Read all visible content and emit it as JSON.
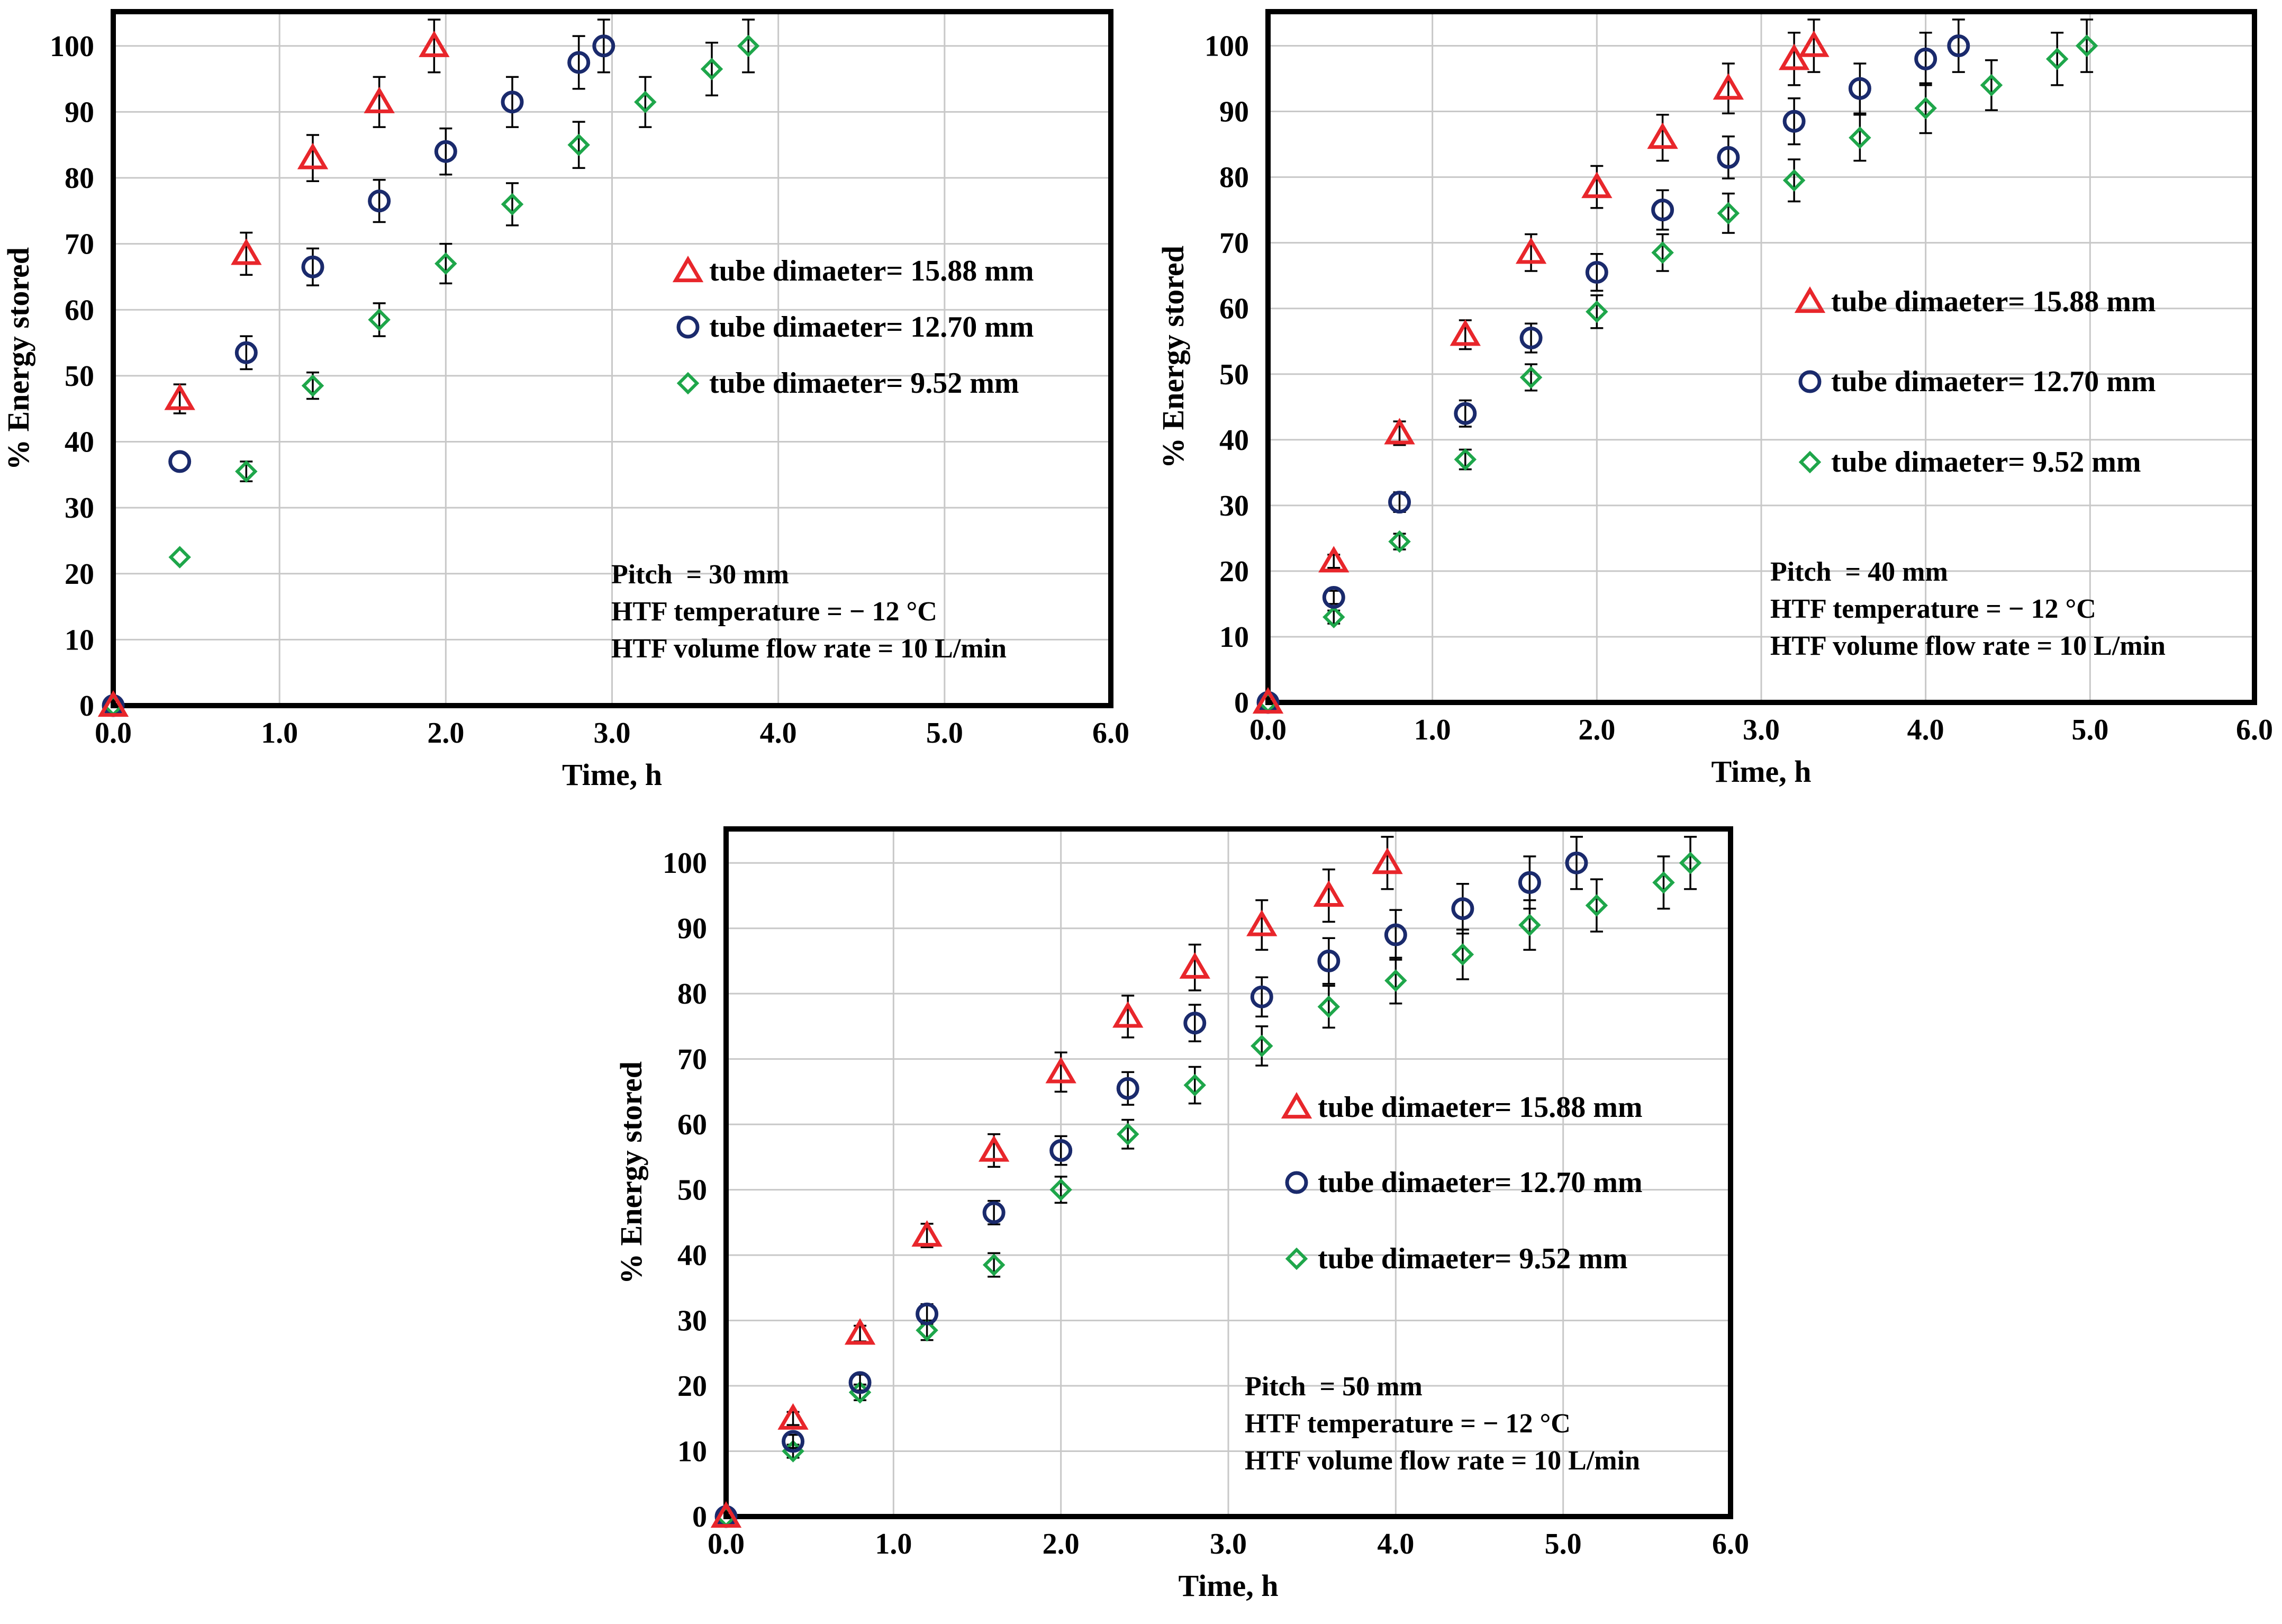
{
  "colors": {
    "d1588": "#e8262b",
    "d1270": "#1a2a6c",
    "d952": "#1ea64a",
    "grid": "#c8c8c8"
  },
  "chart_data": [
    {
      "type": "scatter",
      "title": "",
      "xlabel": "Time, h",
      "ylabel": "% Energy stored",
      "xlim": [
        0,
        6
      ],
      "ylim": [
        0,
        105
      ],
      "xticks": [
        "0.0",
        "1.0",
        "2.0",
        "3.0",
        "4.0",
        "5.0",
        "6.0"
      ],
      "yticks": [
        "0",
        "10",
        "20",
        "30",
        "40",
        "50",
        "60",
        "70",
        "80",
        "90",
        "100"
      ],
      "legend_position": "right",
      "legend": [
        "tube dimaeter= 15.88 mm",
        "tube dimaeter= 12.70 mm",
        "tube dimaeter= 9.52 mm"
      ],
      "notes": [
        "Pitch  = 30 mm",
        "HTF temperature = − 12 °C",
        "HTF volume flow rate = 10 L/min"
      ],
      "series": [
        {
          "name": "tube dimaeter= 15.88 mm",
          "marker": "triangle",
          "color_key": "d1588",
          "x": [
            0,
            0.4,
            0.8,
            1.2,
            1.6,
            1.93
          ],
          "y": [
            0,
            46.5,
            68.5,
            83,
            91.5,
            100
          ],
          "err": [
            0,
            2.2,
            3.2,
            3.5,
            3.8,
            4
          ]
        },
        {
          "name": "tube dimaeter= 12.70 mm",
          "marker": "circle",
          "color_key": "d1270",
          "x": [
            0,
            0.4,
            0.8,
            1.2,
            1.6,
            2.0,
            2.4,
            2.8,
            2.95
          ],
          "y": [
            0,
            37,
            53.5,
            66.5,
            76.5,
            84,
            91.5,
            97.5,
            100
          ],
          "err": [
            0,
            0,
            2.5,
            2.8,
            3.2,
            3.5,
            3.8,
            4,
            4
          ]
        },
        {
          "name": "tube dimaeter= 9.52 mm",
          "marker": "diamond",
          "color_key": "d952",
          "x": [
            0,
            0.4,
            0.8,
            1.2,
            1.6,
            2.0,
            2.4,
            2.8,
            3.2,
            3.6,
            3.82
          ],
          "y": [
            0,
            22.5,
            35.5,
            48.5,
            58.5,
            67,
            76,
            85,
            91.5,
            96.5,
            100
          ],
          "err": [
            0,
            0,
            1.5,
            2,
            2.5,
            3,
            3.2,
            3.5,
            3.8,
            4,
            4
          ]
        }
      ]
    },
    {
      "type": "scatter",
      "title": "",
      "xlabel": "Time, h",
      "ylabel": "% Energy stored",
      "xlim": [
        0,
        6
      ],
      "ylim": [
        0,
        105
      ],
      "xticks": [
        "0.0",
        "1.0",
        "2.0",
        "3.0",
        "4.0",
        "5.0",
        "6.0"
      ],
      "yticks": [
        "0",
        "10",
        "20",
        "30",
        "40",
        "50",
        "60",
        "70",
        "80",
        "90",
        "100"
      ],
      "legend_position": "right",
      "legend": [
        "tube dimaeter= 15.88 mm",
        "tube dimaeter= 12.70 mm",
        "tube dimaeter= 9.52 mm"
      ],
      "notes": [
        "Pitch  = 40 mm",
        "HTF temperature = − 12 °C",
        "HTF volume flow rate = 10 L/min"
      ],
      "series": [
        {
          "name": "tube dimaeter= 15.88 mm",
          "marker": "triangle",
          "color_key": "d1588",
          "x": [
            0,
            0.4,
            0.8,
            1.2,
            1.6,
            2.0,
            2.4,
            2.8,
            3.2,
            3.32
          ],
          "y": [
            0,
            21.5,
            41,
            56,
            68.5,
            78.5,
            86,
            93.5,
            98,
            100
          ],
          "err": [
            0,
            1,
            1.8,
            2.2,
            2.8,
            3.2,
            3.5,
            3.8,
            4,
            4
          ]
        },
        {
          "name": "tube dimaeter= 12.70 mm",
          "marker": "circle",
          "color_key": "d1270",
          "x": [
            0,
            0.4,
            0.8,
            1.2,
            1.6,
            2.0,
            2.4,
            2.8,
            3.2,
            3.6,
            4.0,
            4.2
          ],
          "y": [
            0,
            16,
            30.5,
            44,
            55.5,
            65.5,
            75,
            83,
            88.5,
            93.5,
            98,
            100
          ],
          "err": [
            0,
            1,
            1.5,
            2,
            2.2,
            2.8,
            3,
            3.2,
            3.5,
            3.8,
            4,
            4
          ]
        },
        {
          "name": "tube dimaeter= 9.52 mm",
          "marker": "diamond",
          "color_key": "d952",
          "x": [
            0,
            0.4,
            0.8,
            1.2,
            1.6,
            2.0,
            2.4,
            2.8,
            3.2,
            3.6,
            4.0,
            4.4,
            4.8,
            4.98
          ],
          "y": [
            0,
            13,
            24.5,
            37,
            49.5,
            59.5,
            68.5,
            74.5,
            79.5,
            86,
            90.5,
            94,
            98,
            100
          ],
          "err": [
            0,
            1,
            1.2,
            1.5,
            2,
            2.5,
            2.8,
            3,
            3.2,
            3.5,
            3.8,
            3.8,
            4,
            4
          ]
        }
      ]
    },
    {
      "type": "scatter",
      "title": "",
      "xlabel": "Time, h",
      "ylabel": "% Energy stored",
      "xlim": [
        0,
        6
      ],
      "ylim": [
        0,
        105
      ],
      "xticks": [
        "0.0",
        "1.0",
        "2.0",
        "3.0",
        "4.0",
        "5.0",
        "6.0"
      ],
      "yticks": [
        "0",
        "10",
        "20",
        "30",
        "40",
        "50",
        "60",
        "70",
        "80",
        "90",
        "100"
      ],
      "legend_position": "right",
      "legend": [
        "tube dimaeter= 15.88 mm",
        "tube dimaeter= 12.70 mm",
        "tube dimaeter= 9.52 mm"
      ],
      "notes": [
        "Pitch  = 50 mm",
        "HTF temperature = − 12 °C",
        "HTF volume flow rate = 10 L/min"
      ],
      "series": [
        {
          "name": "tube dimaeter= 15.88 mm",
          "marker": "triangle",
          "color_key": "d1588",
          "x": [
            0,
            0.4,
            0.8,
            1.2,
            1.6,
            2.0,
            2.4,
            2.8,
            3.2,
            3.6,
            3.95
          ],
          "y": [
            0,
            15,
            28,
            43,
            56,
            68,
            76.5,
            84,
            90.5,
            95,
            100
          ],
          "err": [
            0,
            1,
            1.2,
            1.8,
            2.5,
            3,
            3.2,
            3.5,
            3.8,
            4,
            4
          ]
        },
        {
          "name": "tube dimaeter= 12.70 mm",
          "marker": "circle",
          "color_key": "d1270",
          "x": [
            0,
            0.4,
            0.8,
            1.2,
            1.6,
            2.0,
            2.4,
            2.8,
            3.2,
            3.6,
            4.0,
            4.4,
            4.8,
            5.08
          ],
          "y": [
            0,
            11.5,
            20.5,
            31,
            46.5,
            56,
            65.5,
            75.5,
            79.5,
            85,
            89,
            93,
            97,
            100
          ],
          "err": [
            0,
            1,
            1.2,
            1.5,
            1.8,
            2.2,
            2.5,
            2.8,
            3,
            3.5,
            3.8,
            3.8,
            4,
            4
          ]
        },
        {
          "name": "tube dimaeter= 9.52 mm",
          "marker": "diamond",
          "color_key": "d952",
          "x": [
            0,
            0.4,
            0.8,
            1.2,
            1.6,
            2.0,
            2.4,
            2.8,
            3.2,
            3.6,
            4.0,
            4.4,
            4.8,
            5.2,
            5.6,
            5.76
          ],
          "y": [
            0,
            10,
            19,
            28.5,
            38.5,
            50,
            58.5,
            66,
            72,
            78,
            82,
            86,
            90.5,
            93.5,
            97,
            100
          ],
          "err": [
            0,
            1,
            1.2,
            1.5,
            1.8,
            2,
            2.2,
            2.8,
            3,
            3.2,
            3.5,
            3.8,
            3.8,
            4,
            4,
            4
          ]
        }
      ]
    }
  ]
}
